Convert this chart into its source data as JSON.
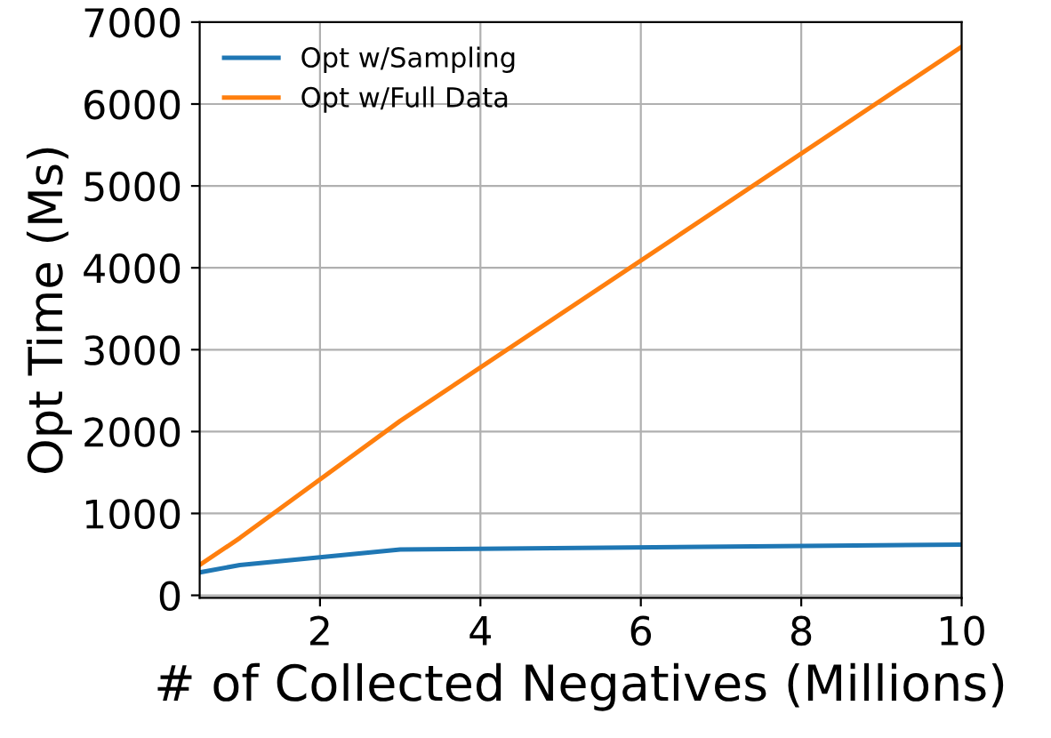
{
  "chart_data": {
    "type": "line",
    "xlabel": "# of Collected Negatives (Millions)",
    "ylabel": "Opt Time (Ms)",
    "x": [
      0.5,
      1,
      3,
      10
    ],
    "series": [
      {
        "name": "Opt w/Sampling",
        "color": "#1f77b4",
        "values": [
          280,
          370,
          560,
          620
        ]
      },
      {
        "name": "Opt w/Full Data",
        "color": "#ff7f0e",
        "values": [
          370,
          700,
          2130,
          6700
        ]
      }
    ],
    "xlim": [
      0.5,
      10
    ],
    "xticks": [
      2,
      4,
      6,
      8,
      10
    ],
    "ylim": [
      -30,
      7000
    ],
    "yticks": [
      0,
      1000,
      2000,
      3000,
      4000,
      5000,
      6000,
      7000
    ],
    "grid": true,
    "legend": "top left"
  }
}
